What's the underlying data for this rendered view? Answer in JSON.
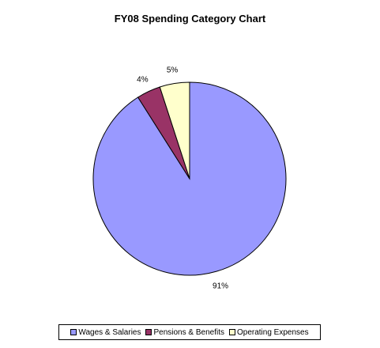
{
  "chart_data": {
    "type": "pie",
    "title": "FY08 Spending Category Chart",
    "slices": [
      {
        "label": "Wages & Salaries",
        "value": 91,
        "display": "91%",
        "color": "#9999FF"
      },
      {
        "label": "Pensions & Benefits",
        "value": 4,
        "display": "4%",
        "color": "#993366"
      },
      {
        "label": "Operating Expenses",
        "value": 5,
        "display": "5%",
        "color": "#FFFFCC"
      }
    ],
    "legend_position": "bottom"
  }
}
